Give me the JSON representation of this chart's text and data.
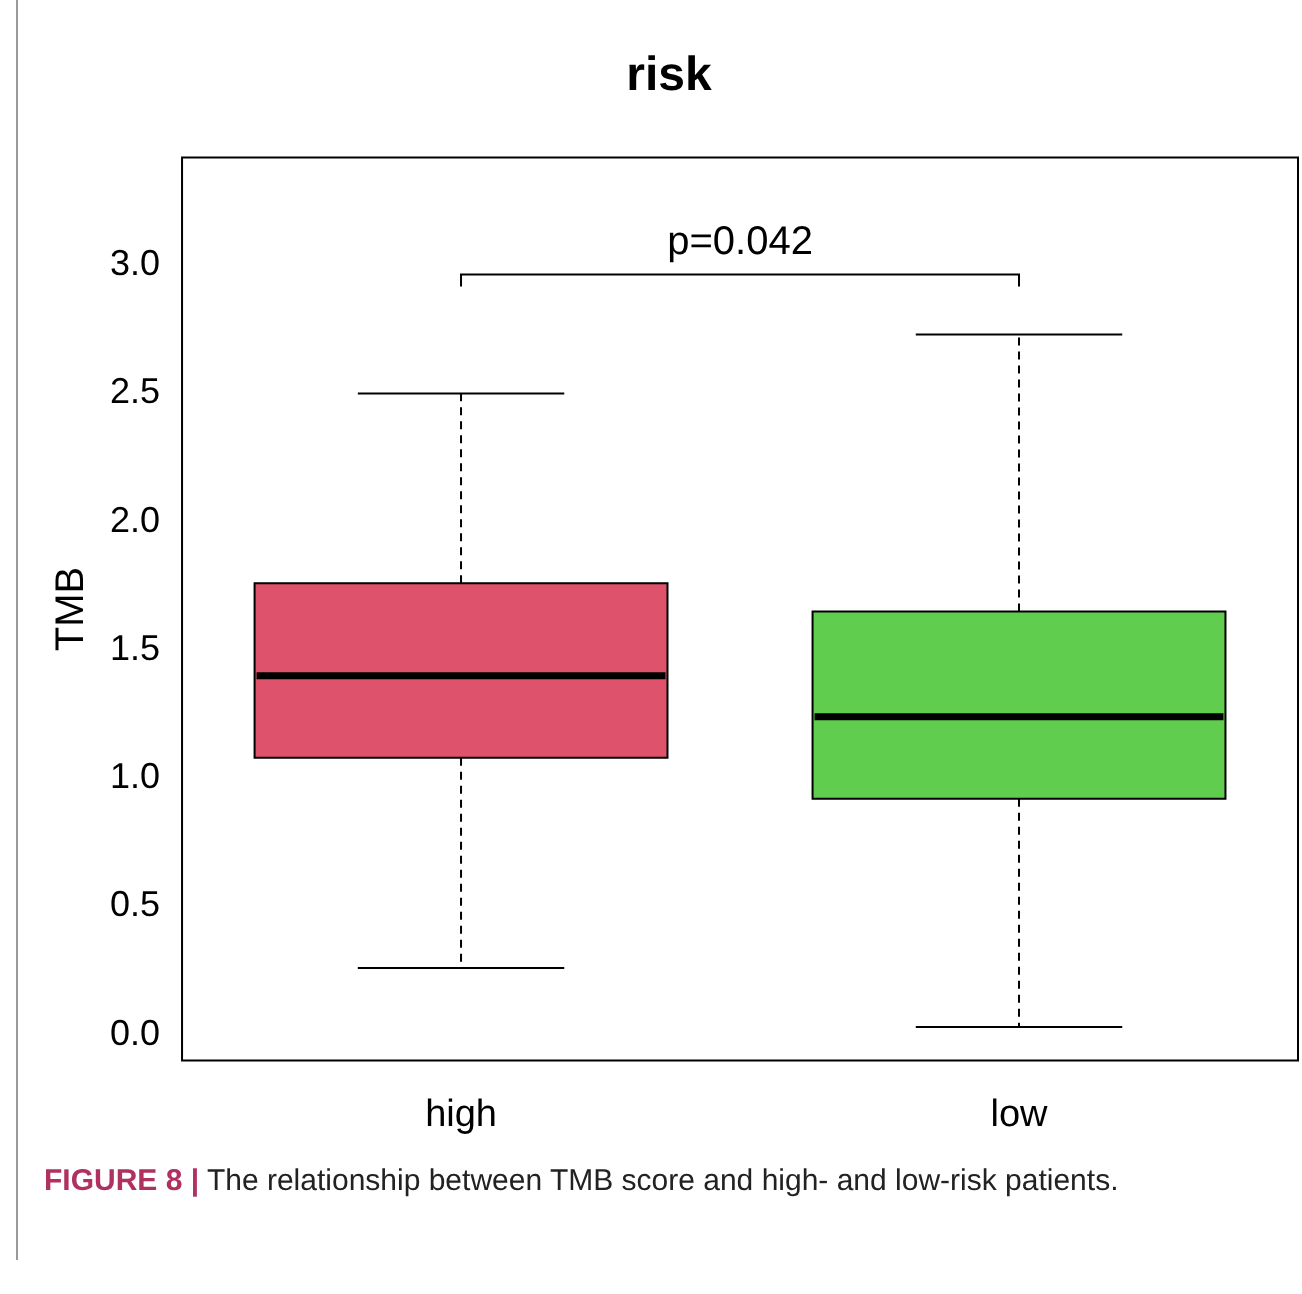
{
  "chart_data": {
    "type": "box",
    "title": "risk",
    "ylabel": "TMB",
    "categories": [
      "high",
      "low"
    ],
    "colors": [
      "#de526c",
      "#60cd4e"
    ],
    "boxes": [
      {
        "low": 0.26,
        "q1": 1.08,
        "median": 1.4,
        "q3": 1.76,
        "high": 2.5
      },
      {
        "low": 0.03,
        "q1": 0.92,
        "median": 1.24,
        "q3": 1.65,
        "high": 2.73
      }
    ],
    "ylim": [
      -0.1,
      3.42
    ],
    "yticks": [
      {
        "value": 0,
        "label": "0.0"
      },
      {
        "value": 0.5,
        "label": "0.5"
      },
      {
        "value": 1,
        "label": "1.0"
      },
      {
        "value": 1.5,
        "label": "1.5"
      },
      {
        "value": 2,
        "label": "2.0"
      },
      {
        "value": 2.5,
        "label": "2.5"
      },
      {
        "value": 3,
        "label": "3.0"
      }
    ],
    "grid": false,
    "legend": false,
    "annotations": [
      "p=0.042",
      "FIGURE 8 | The relationship between TMB score and high- and low-risk patients."
    ]
  }
}
